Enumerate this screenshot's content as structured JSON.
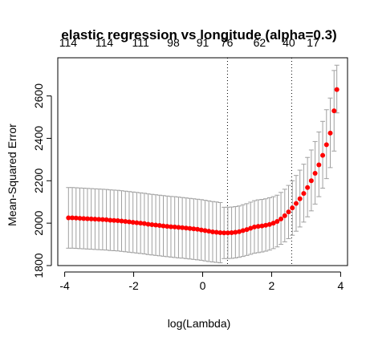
{
  "chart_data": {
    "type": "scatter",
    "title": "elastic regression vs longitude (alpha=0.3)",
    "xlabel": "log(Lambda)",
    "ylabel": "Mean-Squared Error",
    "xlim": [
      -4.2,
      4.2
    ],
    "ylim": [
      1800,
      2780
    ],
    "x_ticks": [
      -4,
      -2,
      0,
      2,
      4
    ],
    "y_ticks": [
      1800,
      2000,
      2200,
      2400,
      2600
    ],
    "top_axis": {
      "x": [
        -3.9,
        -2.85,
        -1.8,
        -0.85,
        0,
        0.7,
        1.65,
        2.5,
        3.2
      ],
      "labels": [
        "114",
        "114",
        "111",
        "98",
        "91",
        "76",
        "62",
        "40",
        "17"
      ]
    },
    "vlines": [
      0.72,
      2.58
    ],
    "point_color": "#ff0000",
    "errorbar_color": "#a0a0a0",
    "x": [
      -3.89,
      -3.78,
      -3.67,
      -3.56,
      -3.45,
      -3.34,
      -3.23,
      -3.12,
      -3.01,
      -2.9,
      -2.79,
      -2.68,
      -2.57,
      -2.46,
      -2.35,
      -2.24,
      -2.13,
      -2.02,
      -1.91,
      -1.8,
      -1.69,
      -1.58,
      -1.47,
      -1.36,
      -1.25,
      -1.14,
      -1.03,
      -0.92,
      -0.81,
      -0.7,
      -0.59,
      -0.48,
      -0.37,
      -0.26,
      -0.15,
      -0.04,
      0.07,
      0.18,
      0.29,
      0.4,
      0.51,
      0.62,
      0.73,
      0.84,
      0.95,
      1.06,
      1.17,
      1.28,
      1.39,
      1.5,
      1.61,
      1.72,
      1.83,
      1.94,
      2.05,
      2.16,
      2.27,
      2.38,
      2.49,
      2.6,
      2.71,
      2.82,
      2.93,
      3.04,
      3.15,
      3.26,
      3.37,
      3.48,
      3.59,
      3.7,
      3.81,
      3.89
    ],
    "series": [
      {
        "values": [
          2025,
          2025,
          2024,
          2023,
          2022,
          2021,
          2020,
          2019,
          2018,
          2017,
          2016,
          2014,
          2013,
          2012,
          2010,
          2008,
          2006,
          2004,
          2002,
          2000,
          1998,
          1995,
          1993,
          1991,
          1989,
          1987,
          1985,
          1983,
          1982,
          1980,
          1979,
          1977,
          1975,
          1973,
          1971,
          1968,
          1965,
          1962,
          1959,
          1957,
          1955,
          1954,
          1954,
          1955,
          1957,
          1960,
          1965,
          1970,
          1976,
          1982,
          1985,
          1987,
          1990,
          1994,
          2000,
          2008,
          2020,
          2035,
          2053,
          2072,
          2093,
          2115,
          2140,
          2168,
          2200,
          2235,
          2275,
          2320,
          2370,
          2425,
          2530,
          2630
        ],
        "lower": [
          1882,
          1882,
          1881,
          1880,
          1879,
          1878,
          1877,
          1876,
          1875,
          1874,
          1873,
          1871,
          1870,
          1869,
          1867,
          1865,
          1863,
          1861,
          1859,
          1857,
          1855,
          1852,
          1850,
          1848,
          1846,
          1844,
          1842,
          1840,
          1838,
          1836,
          1835,
          1833,
          1831,
          1829,
          1827,
          1825,
          1822,
          1819,
          1817,
          1815,
          1813,
          1833,
          1833,
          1834,
          1836,
          1839,
          1843,
          1848,
          1853,
          1858,
          1861,
          1864,
          1868,
          1873,
          1880,
          1888,
          1900,
          1912,
          1927,
          1943,
          1962,
          1982,
          2005,
          2030,
          2058,
          2090,
          2125,
          2165,
          2210,
          2262,
          2340,
          2520
        ],
        "upper": [
          2168,
          2168,
          2167,
          2166,
          2165,
          2164,
          2163,
          2162,
          2161,
          2160,
          2159,
          2157,
          2156,
          2155,
          2153,
          2151,
          2149,
          2147,
          2145,
          2143,
          2141,
          2138,
          2136,
          2134,
          2132,
          2130,
          2128,
          2126,
          2125,
          2123,
          2121,
          2119,
          2117,
          2115,
          2113,
          2111,
          2108,
          2105,
          2102,
          2100,
          2097,
          2075,
          2075,
          2076,
          2078,
          2081,
          2087,
          2092,
          2099,
          2106,
          2110,
          2112,
          2115,
          2120,
          2125,
          2132,
          2145,
          2160,
          2178,
          2200,
          2225,
          2250,
          2278,
          2310,
          2345,
          2385,
          2430,
          2480,
          2535,
          2590,
          2720,
          2745
        ]
      }
    ]
  }
}
